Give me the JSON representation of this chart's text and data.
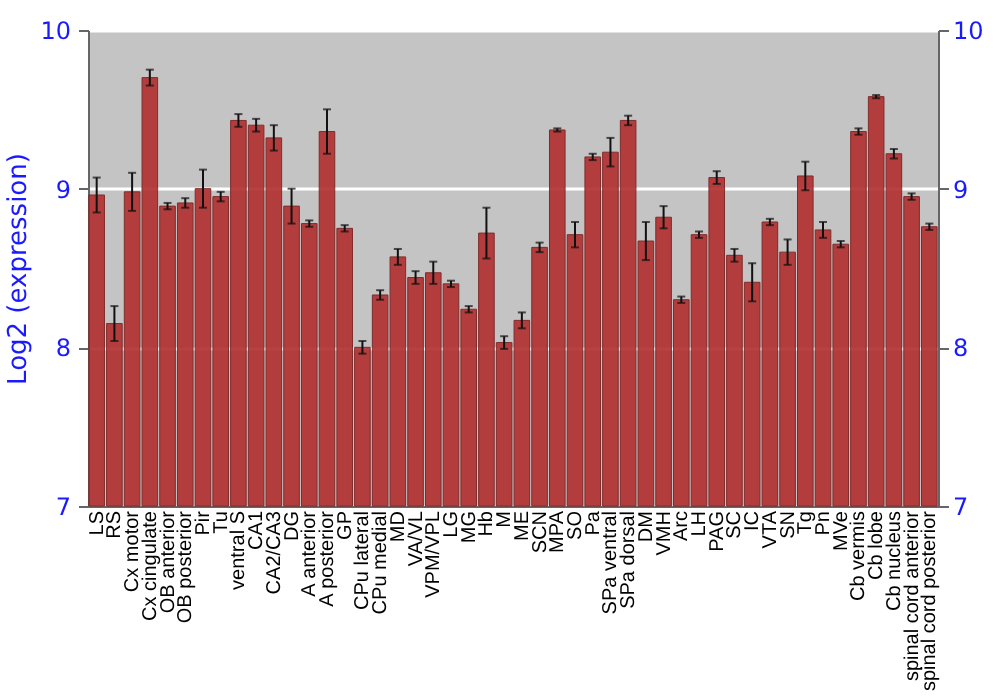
{
  "chart_data": {
    "type": "bar",
    "ylabel": "Log2 (expression)",
    "categories": [
      "LS",
      "RS",
      "Cx motor",
      "Cx cingulate",
      "OB anterior",
      "OB posterior",
      "Pir",
      "Tu",
      "ventral S",
      "CA1",
      "CA2/CA3",
      "DG",
      "A anterior",
      "A posterior",
      "GP",
      "CPu lateral",
      "CPu medial",
      "MD",
      "VA/VL",
      "VPM/VPL",
      "LG",
      "MG",
      "Hb",
      "M",
      "ME",
      "SCN",
      "MPA",
      "SO",
      "Pa",
      "SPa ventral",
      "SPa dorsal",
      "DM",
      "VMH",
      "Arc",
      "LH",
      "PAG",
      "SC",
      "IC",
      "VTA",
      "SN",
      "Tg",
      "Pn",
      "MVe",
      "Cb vermis",
      "Cb lobe",
      "Cb nucleus",
      "spinal cord anterior",
      "spinal cord posterior"
    ],
    "values": [
      8.96,
      8.15,
      8.98,
      9.7,
      8.89,
      8.91,
      9.0,
      8.95,
      9.43,
      9.4,
      9.32,
      8.89,
      8.78,
      9.36,
      8.75,
      8.0,
      8.33,
      8.57,
      8.44,
      8.47,
      8.4,
      8.24,
      8.72,
      8.03,
      8.17,
      8.63,
      9.37,
      8.71,
      9.2,
      9.23,
      9.43,
      8.67,
      8.82,
      8.3,
      8.71,
      9.07,
      8.58,
      8.41,
      8.79,
      8.6,
      9.08,
      8.74,
      8.65,
      9.36,
      9.58,
      9.22,
      8.95,
      8.76
    ],
    "errors": [
      0.11,
      0.11,
      0.12,
      0.05,
      0.02,
      0.03,
      0.12,
      0.03,
      0.04,
      0.04,
      0.08,
      0.11,
      0.02,
      0.14,
      0.02,
      0.04,
      0.03,
      0.05,
      0.04,
      0.07,
      0.02,
      0.02,
      0.16,
      0.04,
      0.05,
      0.03,
      0.01,
      0.08,
      0.02,
      0.09,
      0.03,
      0.12,
      0.07,
      0.02,
      0.02,
      0.04,
      0.04,
      0.12,
      0.02,
      0.08,
      0.09,
      0.05,
      0.02,
      0.02,
      0.01,
      0.03,
      0.02,
      0.02
    ],
    "color": "#b23232",
    "ylim": [
      7,
      10
    ],
    "yticks": [
      7,
      8,
      9,
      10
    ],
    "y2lim": [
      7,
      10
    ],
    "y2ticks": [
      7,
      8,
      9,
      10
    ],
    "grid": "y"
  }
}
